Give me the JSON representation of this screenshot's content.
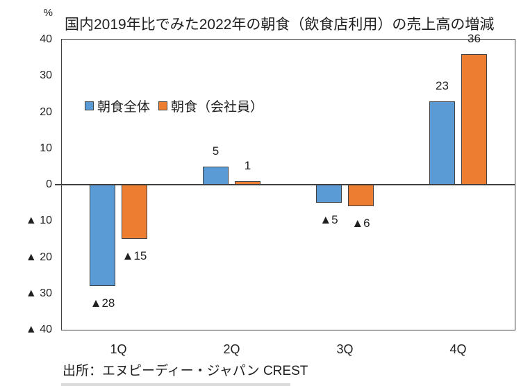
{
  "unit_label": "%",
  "title": "国内2019年比でみた2022年の朝食（飲食店利用）の売上高の増減",
  "source": "出所：エヌピーディー・ジャパン CREST",
  "chart_data": {
    "type": "bar",
    "title": "国内2019年比でみた2022年の朝食（飲食店利用）の売上高の増減",
    "unit": "%",
    "categories": [
      "1Q",
      "2Q",
      "3Q",
      "4Q"
    ],
    "series": [
      {
        "name": "朝食全体",
        "color": "#5B9BD5",
        "values": [
          -28,
          5,
          -5,
          23
        ]
      },
      {
        "name": "朝食（会社員）",
        "color": "#ED7D31",
        "values": [
          -15,
          1,
          -6,
          36
        ]
      }
    ],
    "ylim": [
      -40,
      40
    ],
    "ytick_step": 10,
    "negative_marker": "▲",
    "ytick_negative_format": "▲ {n}",
    "data_label_negative_format": "▲{n}",
    "grid": false,
    "legend_position": "inside-top-left",
    "bar_border_color": "#404040",
    "axis_color": "#404040",
    "label_color": "#1f1f1f"
  }
}
